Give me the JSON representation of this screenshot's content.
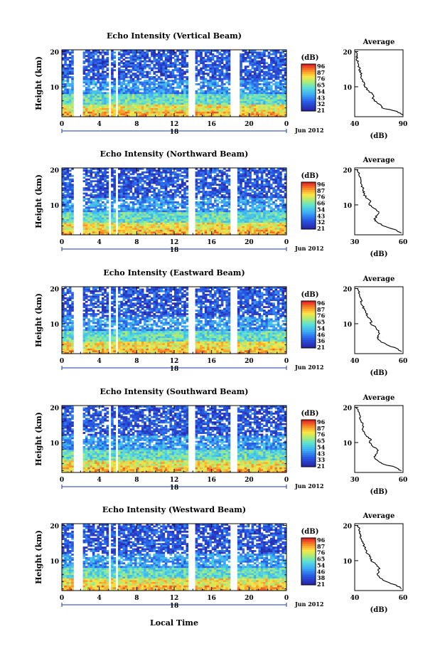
{
  "figure": {
    "xlabel_bottom": "Local Time",
    "units_label": "(dB)",
    "average_title": "Average",
    "ylabel": "Height (km)"
  },
  "chart_data": [
    {
      "type": "heatmap",
      "title": "Echo Intensity (Vertical Beam)",
      "ylabel": "Height (km)",
      "xticks": [
        "0",
        "4",
        "8",
        "12",
        "16",
        "20",
        "0"
      ],
      "yticks": [
        "10",
        "20"
      ],
      "date_label": "Jun 2012",
      "day_label": "18",
      "ylim": [
        1.5,
        20.5
      ],
      "xlim": [
        0,
        24
      ],
      "colorbar": {
        "label": "(dB)",
        "ticks": [
          "96",
          "87",
          "76",
          "65",
          "54",
          "43",
          "32",
          "21"
        ]
      },
      "gaps_hours": [
        [
          1.2,
          2.2
        ],
        [
          5.0,
          5.2
        ],
        [
          5.6,
          5.8
        ],
        [
          13.4,
          14.2
        ],
        [
          17.8,
          18.8
        ]
      ],
      "average_profile": {
        "title": "Average",
        "xlabel": "(dB)",
        "xlim": [
          40,
          90
        ],
        "xticks": [
          "40",
          "90"
        ],
        "yticks": [
          "10",
          "20"
        ],
        "heights": [
          2,
          3,
          4,
          5,
          6,
          7,
          8,
          9,
          10,
          11,
          12,
          13,
          14,
          15,
          16,
          17,
          18,
          19,
          20
        ],
        "values": [
          90,
          84,
          68,
          66,
          60,
          59,
          58,
          54,
          50,
          50,
          48,
          47,
          46,
          45,
          44,
          43,
          42,
          42,
          41
        ]
      }
    },
    {
      "type": "heatmap",
      "title": "Echo Intensity (Northward Beam)",
      "ylabel": "Height (km)",
      "xticks": [
        "0",
        "4",
        "8",
        "12",
        "16",
        "20",
        "0"
      ],
      "yticks": [
        "10",
        "20"
      ],
      "date_label": "Jun 2012",
      "day_label": "18",
      "ylim": [
        1.5,
        20.5
      ],
      "xlim": [
        0,
        24
      ],
      "colorbar": {
        "label": "(dB)",
        "ticks": [
          "96",
          "87",
          "76",
          "66",
          "54",
          "43",
          "32",
          "21"
        ]
      },
      "gaps_hours": [
        [
          1.2,
          2.2
        ],
        [
          5.0,
          5.2
        ],
        [
          5.6,
          5.8
        ],
        [
          13.4,
          14.2
        ],
        [
          17.8,
          18.6
        ]
      ],
      "average_profile": {
        "title": "Average",
        "xlabel": "(dB)",
        "xlim": [
          30,
          60
        ],
        "xticks": [
          "30",
          "60"
        ],
        "yticks": [
          "10",
          "20"
        ],
        "heights": [
          2,
          3,
          4,
          5,
          6,
          7,
          8,
          9,
          10,
          11,
          12,
          13,
          14,
          15,
          16,
          17,
          18,
          19,
          20
        ],
        "values": [
          59,
          55,
          48,
          44,
          42,
          44,
          45,
          42,
          39,
          40,
          37,
          36,
          35,
          35,
          34,
          34,
          33,
          33,
          32
        ]
      }
    },
    {
      "type": "heatmap",
      "title": "Echo Intensity (Eastward Beam)",
      "ylabel": "Height (km)",
      "xticks": [
        "0",
        "4",
        "8",
        "12",
        "16",
        "20",
        "0"
      ],
      "yticks": [
        "10",
        "20"
      ],
      "date_label": "Jun 2012",
      "day_label": "18",
      "ylim": [
        1.5,
        20.5
      ],
      "xlim": [
        0,
        24
      ],
      "colorbar": {
        "label": "(dB)",
        "ticks": [
          "96",
          "87",
          "76",
          "65",
          "54",
          "46",
          "36",
          "21"
        ]
      },
      "gaps_hours": [
        [
          1.2,
          2.2
        ],
        [
          5.0,
          5.2
        ],
        [
          5.6,
          5.8
        ],
        [
          13.4,
          14.2
        ],
        [
          17.8,
          18.6
        ]
      ],
      "average_profile": {
        "title": "Average",
        "xlabel": "(dB)",
        "xlim": [
          30,
          60
        ],
        "xticks": [
          "40",
          "60"
        ],
        "yticks": [
          "10",
          "20"
        ],
        "heights": [
          2,
          3,
          4,
          5,
          6,
          7,
          8,
          9,
          10,
          11,
          12,
          13,
          14,
          15,
          16,
          17,
          18,
          19,
          20
        ],
        "values": [
          59,
          56,
          50,
          46,
          44,
          45,
          45,
          43,
          40,
          40,
          38,
          37,
          36,
          35,
          34,
          34,
          33,
          33,
          32
        ]
      }
    },
    {
      "type": "heatmap",
      "title": "Echo Intensity (Southward Beam)",
      "ylabel": "Height (km)",
      "xticks": [
        "0",
        "4",
        "8",
        "12",
        "16",
        "20",
        "0"
      ],
      "yticks": [
        "10",
        "20"
      ],
      "date_label": "Jun 2012",
      "day_label": "18",
      "ylim": [
        1.5,
        20.5
      ],
      "xlim": [
        0,
        24
      ],
      "colorbar": {
        "label": "(dB)",
        "ticks": [
          "96",
          "87",
          "76",
          "65",
          "54",
          "43",
          "33",
          "21"
        ]
      },
      "gaps_hours": [
        [
          1.2,
          2.2
        ],
        [
          5.0,
          5.2
        ],
        [
          5.6,
          5.8
        ],
        [
          13.4,
          14.2
        ],
        [
          17.8,
          18.6
        ]
      ],
      "average_profile": {
        "title": "Average",
        "xlabel": "(dB)",
        "xlim": [
          30,
          60
        ],
        "xticks": [
          "30",
          "60"
        ],
        "yticks": [
          "10",
          "20"
        ],
        "heights": [
          2,
          3,
          4,
          5,
          6,
          7,
          8,
          9,
          10,
          11,
          12,
          13,
          14,
          15,
          16,
          17,
          18,
          19,
          20
        ],
        "values": [
          59,
          55,
          47,
          44,
          42,
          44,
          44,
          41,
          39,
          40,
          37,
          36,
          35,
          35,
          34,
          33,
          33,
          32,
          31
        ]
      }
    },
    {
      "type": "heatmap",
      "title": "Echo Intensity (Westward Beam)",
      "ylabel": "Height (km)",
      "xticks": [
        "0",
        "4",
        "8",
        "12",
        "16",
        "20",
        "0"
      ],
      "yticks": [
        "10",
        "20"
      ],
      "date_label": "Jun 2012",
      "day_label": "18",
      "ylim": [
        1.5,
        20.5
      ],
      "xlim": [
        0,
        24
      ],
      "colorbar": {
        "label": "(dB)",
        "ticks": [
          "96",
          "87",
          "76",
          "65",
          "54",
          "46",
          "38",
          "21"
        ]
      },
      "gaps_hours": [
        [
          1.2,
          2.2
        ],
        [
          5.0,
          5.2
        ],
        [
          5.6,
          5.8
        ],
        [
          13.4,
          14.2
        ],
        [
          17.8,
          18.6
        ]
      ],
      "average_profile": {
        "title": "Average",
        "xlabel": "(dB)",
        "xlim": [
          30,
          60
        ],
        "xticks": [
          "40",
          "60"
        ],
        "yticks": [
          "10",
          "20"
        ],
        "heights": [
          2,
          3,
          4,
          5,
          6,
          7,
          8,
          9,
          10,
          11,
          12,
          13,
          14,
          15,
          16,
          17,
          18,
          19,
          20
        ],
        "values": [
          59,
          56,
          50,
          46,
          44,
          45,
          45,
          43,
          40,
          40,
          38,
          37,
          36,
          35,
          34,
          34,
          33,
          33,
          32
        ]
      }
    }
  ]
}
